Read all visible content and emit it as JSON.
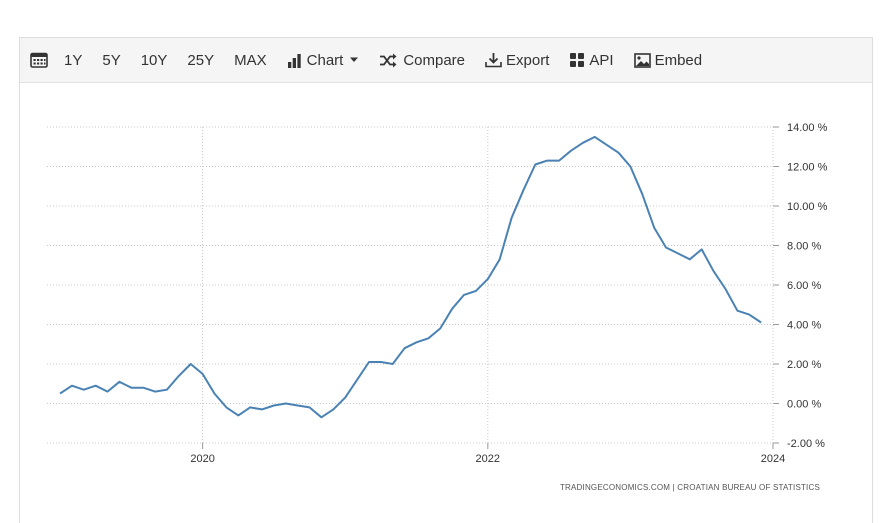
{
  "toolbar": {
    "calendar_icon": "calendar-icon",
    "ranges": [
      "1Y",
      "5Y",
      "10Y",
      "25Y",
      "MAX"
    ],
    "chart_label": "Chart",
    "compare_label": "Compare",
    "export_label": "Export",
    "api_label": "API",
    "embed_label": "Embed"
  },
  "source": "TRADINGECONOMICS.COM  |  CROATIAN BUREAU OF STATISTICS",
  "colors": {
    "line": "#4a82b4",
    "grid": "#c8c8c8",
    "toolbar_bg": "#f5f5f5"
  },
  "chart_data": {
    "type": "line",
    "title": "",
    "xlabel": "",
    "ylabel": "",
    "grid": true,
    "legend": "none",
    "x_ticks": [
      "2020",
      "2022",
      "2024"
    ],
    "y_ticks": [
      "14.00 %",
      "12.00 %",
      "10.00 %",
      "8.00 %",
      "6.00 %",
      "4.00 %",
      "2.00 %",
      "0.00 %",
      "-2.00 %"
    ],
    "ylim": [
      -2,
      14
    ],
    "xlim": [
      "2019-01",
      "2024-01"
    ],
    "series": [
      {
        "x": [
          "2019-01",
          "2019-02",
          "2019-03",
          "2019-04",
          "2019-05",
          "2019-06",
          "2019-07",
          "2019-08",
          "2019-09",
          "2019-10",
          "2019-11",
          "2019-12",
          "2020-01",
          "2020-02",
          "2020-03",
          "2020-04",
          "2020-05",
          "2020-06",
          "2020-07",
          "2020-08",
          "2020-09",
          "2020-10",
          "2020-11",
          "2020-12",
          "2021-01",
          "2021-02",
          "2021-03",
          "2021-04",
          "2021-05",
          "2021-06",
          "2021-07",
          "2021-08",
          "2021-09",
          "2021-10",
          "2021-11",
          "2021-12",
          "2022-01",
          "2022-02",
          "2022-03",
          "2022-04",
          "2022-05",
          "2022-06",
          "2022-07",
          "2022-08",
          "2022-09",
          "2022-10",
          "2022-11",
          "2022-12",
          "2023-01",
          "2023-02",
          "2023-03",
          "2023-04",
          "2023-05",
          "2023-06",
          "2023-07",
          "2023-08",
          "2023-09",
          "2023-10",
          "2023-11",
          "2023-12"
        ],
        "values": [
          0.5,
          0.9,
          0.7,
          0.9,
          0.6,
          1.1,
          0.8,
          0.8,
          0.6,
          0.7,
          1.4,
          2.0,
          1.5,
          0.5,
          -0.2,
          -0.6,
          -0.2,
          -0.3,
          -0.1,
          0.0,
          -0.1,
          -0.2,
          -0.7,
          -0.3,
          0.3,
          1.2,
          2.1,
          2.1,
          2.0,
          2.8,
          3.1,
          3.3,
          3.8,
          4.8,
          5.5,
          5.7,
          6.3,
          7.3,
          9.4,
          10.8,
          12.1,
          12.3,
          12.3,
          12.8,
          13.2,
          13.5,
          13.1,
          12.7,
          12.0,
          10.6,
          8.9,
          7.9,
          7.6,
          7.3,
          7.8,
          6.7,
          5.8,
          4.7,
          4.5,
          4.1
        ]
      }
    ]
  }
}
